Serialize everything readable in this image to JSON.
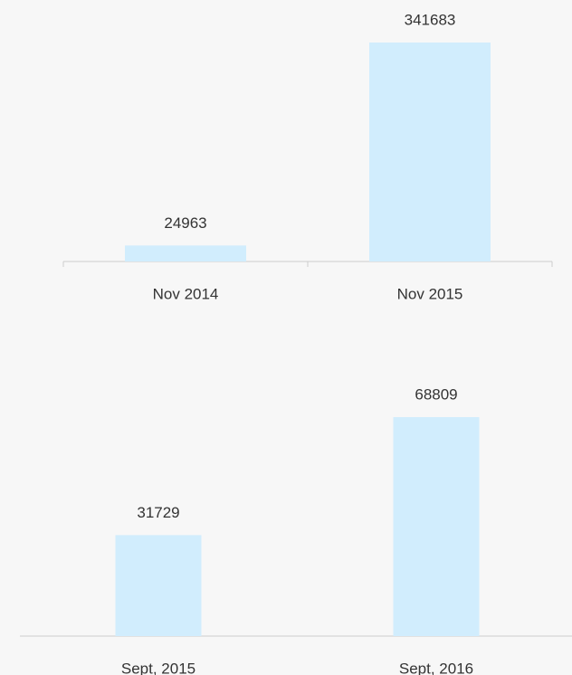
{
  "chart_data": [
    {
      "type": "bar",
      "categories": [
        "Nov 2014",
        "Nov 2015"
      ],
      "values": [
        24963,
        341683
      ],
      "color": "#d1edfd"
    },
    {
      "type": "bar",
      "categories": [
        "Sept, 2015",
        "Sept, 2016"
      ],
      "values": [
        31729,
        68809
      ],
      "color": "#d1edfd"
    }
  ]
}
